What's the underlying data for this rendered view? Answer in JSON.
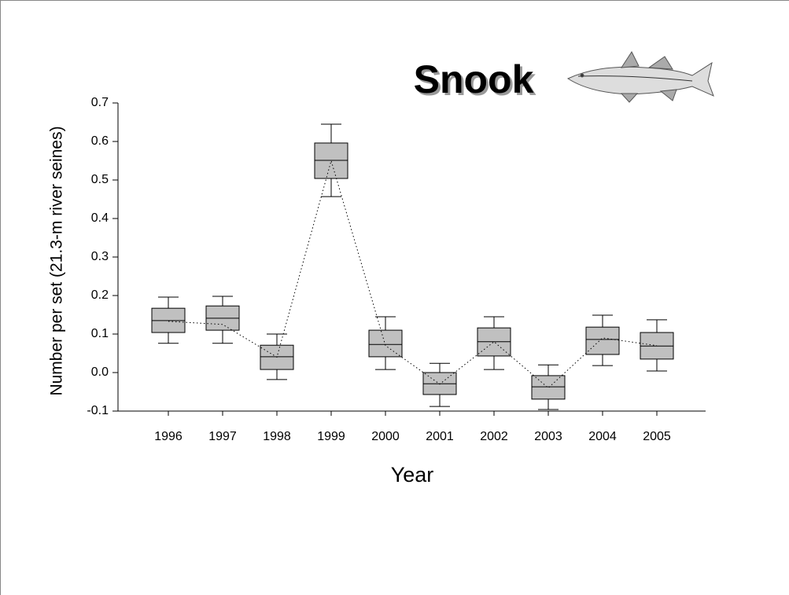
{
  "chart_data": {
    "type": "box",
    "title": "Snook",
    "x_label": "Year",
    "y_label": "Number per set (21.3-m river seines)",
    "categories": [
      "1996",
      "1997",
      "1998",
      "1999",
      "2000",
      "2001",
      "2002",
      "2003",
      "2004",
      "2005"
    ],
    "whisker_high": [
      0.196,
      0.198,
      0.1,
      0.645,
      0.145,
      0.024,
      0.145,
      0.02,
      0.149,
      0.137
    ],
    "q3": [
      0.167,
      0.173,
      0.071,
      0.596,
      0.11,
      0.0,
      0.116,
      -0.008,
      0.118,
      0.104
    ],
    "median": [
      0.135,
      0.141,
      0.041,
      0.551,
      0.073,
      -0.029,
      0.08,
      -0.037,
      0.086,
      0.069
    ],
    "q1": [
      0.104,
      0.11,
      0.008,
      0.504,
      0.041,
      -0.057,
      0.043,
      -0.069,
      0.047,
      0.035
    ],
    "whisker_low": [
      0.076,
      0.076,
      -0.018,
      0.457,
      0.008,
      -0.088,
      0.008,
      -0.096,
      0.018,
      0.004
    ],
    "mean": [
      0.133,
      0.125,
      0.04,
      0.55,
      0.07,
      -0.03,
      0.08,
      -0.04,
      0.09,
      0.07
    ],
    "color": "#c0c0c0",
    "ylim": [
      -0.1,
      0.7
    ],
    "yticks": [
      -0.1,
      {
        "value": 0,
        "label": "0.0"
      },
      0.1,
      0.2,
      0.3,
      0.4,
      0.5,
      0.6,
      0.7
    ]
  }
}
